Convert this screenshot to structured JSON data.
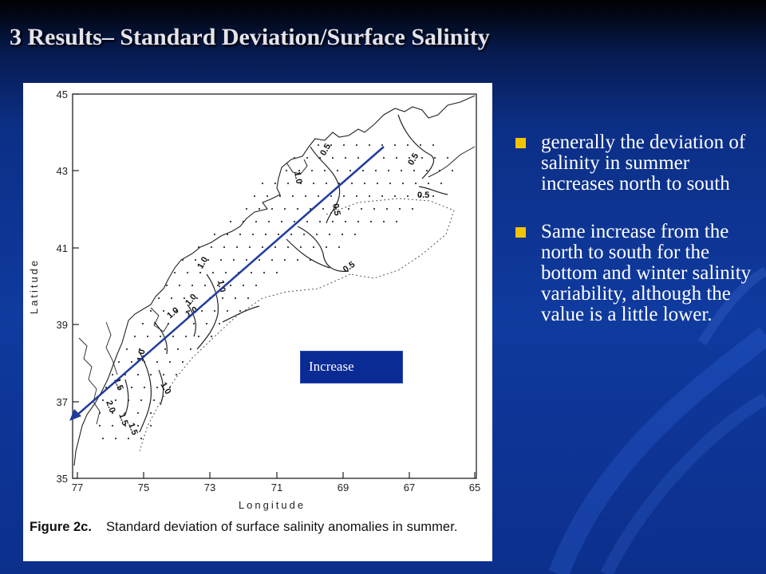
{
  "slide": {
    "title": "3 Results– Standard Deviation/Surface Salinity"
  },
  "figure": {
    "caption_label": "Figure 2c.",
    "caption_text": "Standard deviation of surface salinity anomalies in summer.",
    "x_axis_label": "Longitude",
    "y_axis_label": "Latitude",
    "x_ticks": [
      "77",
      "75",
      "73",
      "71",
      "69",
      "67",
      "65"
    ],
    "y_ticks": [
      "45",
      "43",
      "41",
      "39",
      "37",
      "35"
    ],
    "contour_labels": [
      "0.5",
      "0.5",
      "0.5",
      "0.5",
      "0.5",
      "1.0",
      "1.0",
      "1.0",
      "1.0",
      "1.0",
      "1.0",
      "1.0",
      "1.5",
      "1.5",
      "2.0",
      "1.5",
      "1.0"
    ],
    "arrow_label": "Increase",
    "arrow_color": "#1f3c9c"
  },
  "bullets": [
    "generally the deviation of salinity in summer increases north to south",
    "Same increase from the north to south for the bottom and winter salinity variability, although the value is a little lower."
  ],
  "colors": {
    "background": "#0f3a9f",
    "bullet_marker": "#f5c400",
    "title": "#e4e4ec"
  }
}
